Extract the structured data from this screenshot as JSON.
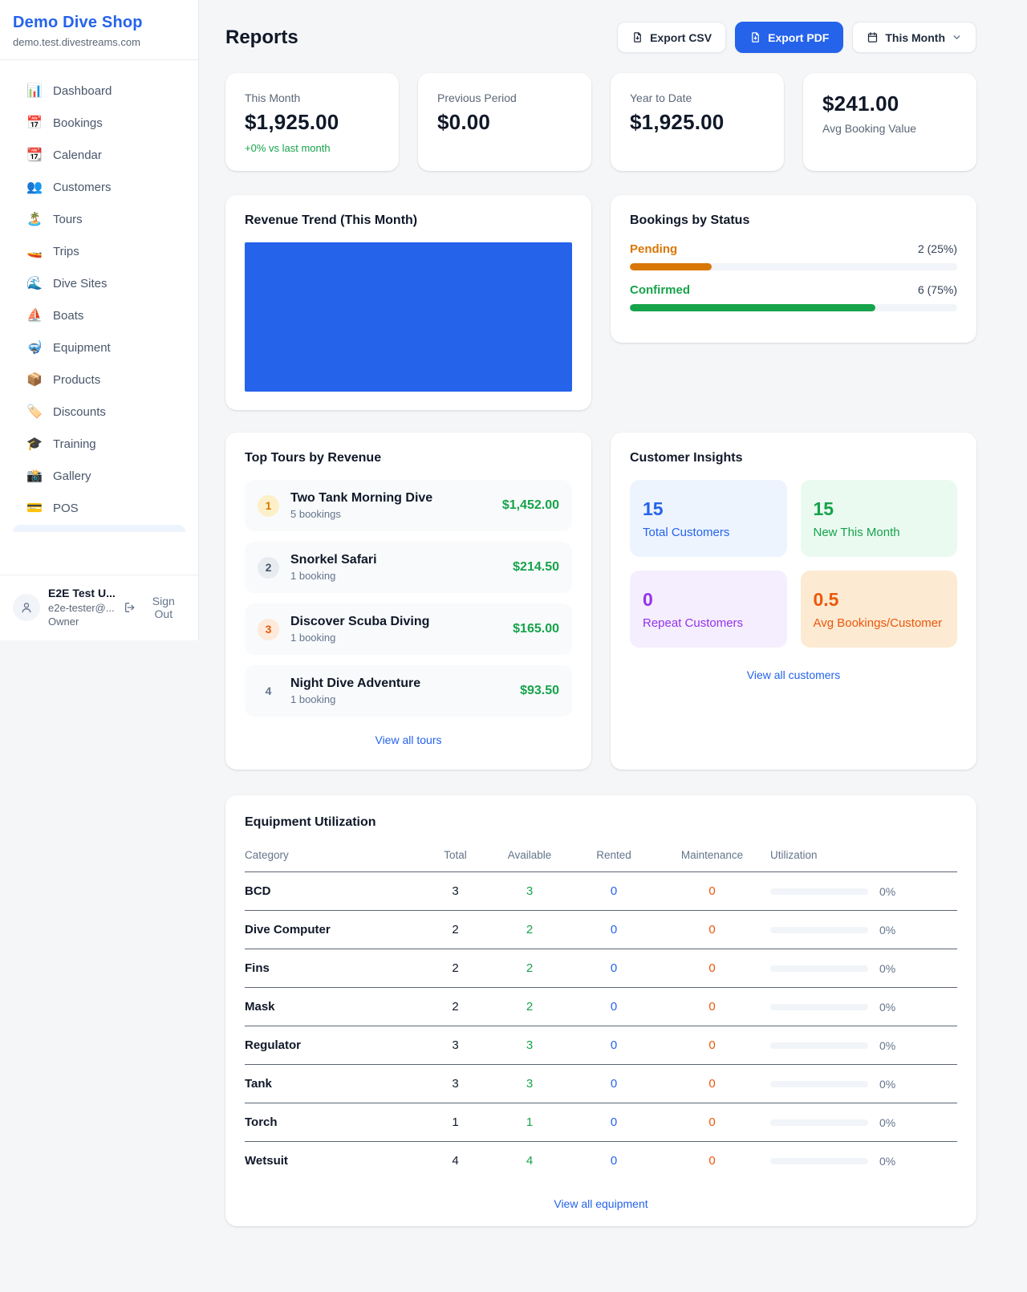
{
  "colors": {
    "accent_blue": "#2563eb",
    "green": "#16a34a",
    "amber": "#d97706",
    "orange": "#ea580c",
    "purple": "#9333ea",
    "chart_fill": "#2563eb"
  },
  "sidebar": {
    "brand": {
      "name": "Demo Dive Shop",
      "domain": "demo.test.divestreams.com"
    },
    "items": [
      {
        "icon": "📊",
        "label": "Dashboard"
      },
      {
        "icon": "📅",
        "label": "Bookings"
      },
      {
        "icon": "📆",
        "label": "Calendar"
      },
      {
        "icon": "👥",
        "label": "Customers"
      },
      {
        "icon": "🏝️",
        "label": "Tours"
      },
      {
        "icon": "🚤",
        "label": "Trips"
      },
      {
        "icon": "🌊",
        "label": "Dive Sites"
      },
      {
        "icon": "⛵",
        "label": "Boats"
      },
      {
        "icon": "🤿",
        "label": "Equipment"
      },
      {
        "icon": "📦",
        "label": "Products"
      },
      {
        "icon": "🏷️",
        "label": "Discounts"
      },
      {
        "icon": "🎓",
        "label": "Training"
      },
      {
        "icon": "📸",
        "label": "Gallery"
      },
      {
        "icon": "💳",
        "label": "POS"
      }
    ],
    "user": {
      "name": "E2E Test U...",
      "email": "e2e-tester@...",
      "role": "Owner",
      "sign_out": "Sign Out"
    }
  },
  "header": {
    "title": "Reports",
    "export_csv": "Export CSV",
    "export_pdf": "Export PDF",
    "period": "This Month"
  },
  "stats": [
    {
      "label": "This Month",
      "value": "$1,925.00",
      "delta": "+0% vs last month"
    },
    {
      "label": "Previous Period",
      "value": "$0.00"
    },
    {
      "label": "Year to Date",
      "value": "$1,925.00"
    },
    {
      "label": "Avg Booking Value",
      "value": "$241.00"
    }
  ],
  "revenue_trend": {
    "title": "Revenue Trend (This Month)"
  },
  "bookings_by_status": {
    "title": "Bookings by Status",
    "rows": [
      {
        "label": "Pending",
        "value": "2 (25%)",
        "percent": 25
      },
      {
        "label": "Confirmed",
        "value": "6 (75%)",
        "percent": 75
      }
    ]
  },
  "top_tours": {
    "title": "Top Tours by Revenue",
    "rows": [
      {
        "rank": "1",
        "name": "Two Tank Morning Dive",
        "bookings": "5 bookings",
        "amount": "$1,452.00"
      },
      {
        "rank": "2",
        "name": "Snorkel Safari",
        "bookings": "1 booking",
        "amount": "$214.50"
      },
      {
        "rank": "3",
        "name": "Discover Scuba Diving",
        "bookings": "1 booking",
        "amount": "$165.00"
      },
      {
        "rank": "4",
        "name": "Night Dive Adventure",
        "bookings": "1 booking",
        "amount": "$93.50"
      }
    ],
    "link": "View all tours"
  },
  "customer_insights": {
    "title": "Customer Insights",
    "tiles": [
      {
        "value": "15",
        "label": "Total Customers"
      },
      {
        "value": "15",
        "label": "New This Month"
      },
      {
        "value": "0",
        "label": "Repeat Customers"
      },
      {
        "value": "0.5",
        "label": "Avg Bookings/Customer"
      }
    ],
    "link": "View all customers"
  },
  "equipment": {
    "title": "Equipment Utilization",
    "columns": [
      "Category",
      "Total",
      "Available",
      "Rented",
      "Maintenance",
      "Utilization"
    ],
    "rows": [
      {
        "category": "BCD",
        "total": "3",
        "available": "3",
        "rented": "0",
        "maintenance": "0",
        "utilization": "0%",
        "percent": 0
      },
      {
        "category": "Dive Computer",
        "total": "2",
        "available": "2",
        "rented": "0",
        "maintenance": "0",
        "utilization": "0%",
        "percent": 0
      },
      {
        "category": "Fins",
        "total": "2",
        "available": "2",
        "rented": "0",
        "maintenance": "0",
        "utilization": "0%",
        "percent": 0
      },
      {
        "category": "Mask",
        "total": "2",
        "available": "2",
        "rented": "0",
        "maintenance": "0",
        "utilization": "0%",
        "percent": 0
      },
      {
        "category": "Regulator",
        "total": "3",
        "available": "3",
        "rented": "0",
        "maintenance": "0",
        "utilization": "0%",
        "percent": 0
      },
      {
        "category": "Tank",
        "total": "3",
        "available": "3",
        "rented": "0",
        "maintenance": "0",
        "utilization": "0%",
        "percent": 0
      },
      {
        "category": "Torch",
        "total": "1",
        "available": "1",
        "rented": "0",
        "maintenance": "0",
        "utilization": "0%",
        "percent": 0
      },
      {
        "category": "Wetsuit",
        "total": "4",
        "available": "4",
        "rented": "0",
        "maintenance": "0",
        "utilization": "0%",
        "percent": 0
      }
    ],
    "link": "View all equipment"
  },
  "chart_data": [
    {
      "type": "area",
      "title": "Revenue Trend (This Month)",
      "note": "plot area rendered as a solid filled block, no axis or tick labels visible",
      "fill_color": "#2563eb"
    },
    {
      "type": "bar",
      "title": "Bookings by Status",
      "categories": [
        "Pending",
        "Confirmed"
      ],
      "values": [
        2,
        6
      ],
      "percent": [
        25,
        75
      ],
      "colors": [
        "#d97706",
        "#16a34a"
      ]
    }
  ]
}
